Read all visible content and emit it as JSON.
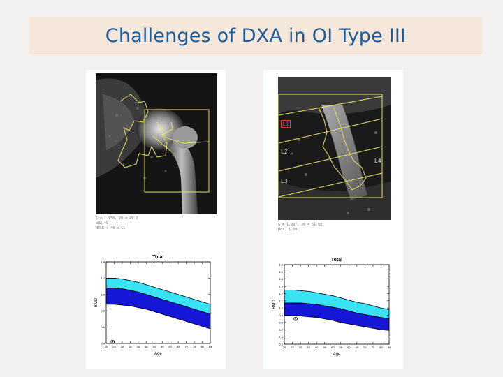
{
  "slide": {
    "title": "Challenges of DXA in OI Type III"
  },
  "colors": {
    "title_bg": "#f6e7db",
    "title_text": "#1f5c9c",
    "upper_band": "#39e2f4",
    "lower_band": "#1616d6"
  },
  "left_panel": {
    "scan_type": "hip DXA scan",
    "stats_lines": [
      "S = 1.150, 20 = 49.2",
      "aBA v9",
      "NECK : 49 x 11"
    ],
    "chart_title": "Total"
  },
  "right_panel": {
    "scan_type": "lumbar spine DXA scan",
    "vertebra_labels": [
      "L1",
      "L2",
      "L3",
      "L4"
    ],
    "stats_lines": [
      "S = 1.097, 20 = 51.08",
      "Hor. 1.09"
    ],
    "chart_title": "Total"
  },
  "chart_data": [
    {
      "type": "area",
      "title": "Total",
      "xlabel": "Age",
      "ylabel": "BMD",
      "x": [
        20,
        25,
        30,
        35,
        40,
        45,
        50,
        55,
        60,
        65,
        70,
        75,
        80,
        85
      ],
      "xlim": [
        20,
        85
      ],
      "ylim": [
        0.4,
        1.4
      ],
      "yticks": [
        0.4,
        0.6,
        0.8,
        1.0,
        1.2,
        1.4
      ],
      "grid": false,
      "series": [
        {
          "values": [
            1.2,
            1.2,
            1.19,
            1.17,
            1.15,
            1.12,
            1.09,
            1.06,
            1.03,
            1.0,
            0.97,
            0.94,
            0.91,
            0.88
          ]
        },
        {
          "values": [
            1.08,
            1.08,
            1.07,
            1.05,
            1.03,
            1.0,
            0.97,
            0.94,
            0.91,
            0.88,
            0.85,
            0.82,
            0.79,
            0.76
          ]
        },
        {
          "values": [
            0.88,
            0.88,
            0.87,
            0.86,
            0.84,
            0.82,
            0.79,
            0.76,
            0.73,
            0.7,
            0.67,
            0.64,
            0.61,
            0.58
          ]
        }
      ],
      "patient_point": {
        "x": 24,
        "y": 0.42
      }
    },
    {
      "type": "area",
      "title": "Total",
      "xlabel": "Age",
      "ylabel": "BMD",
      "x": [
        20,
        25,
        30,
        35,
        40,
        45,
        50,
        55,
        60,
        65,
        70,
        75,
        80,
        85
      ],
      "xlim": [
        20,
        85
      ],
      "ylim": [
        0.5,
        1.6
      ],
      "yticks": [
        0.5,
        0.6,
        0.7,
        0.8,
        0.9,
        1.0,
        1.1,
        1.2,
        1.3,
        1.4,
        1.5,
        1.6
      ],
      "grid": false,
      "series": [
        {
          "values": [
            1.25,
            1.25,
            1.24,
            1.23,
            1.21,
            1.19,
            1.17,
            1.14,
            1.11,
            1.08,
            1.06,
            1.03,
            1.0,
            0.98
          ]
        },
        {
          "values": [
            1.07,
            1.07,
            1.07,
            1.06,
            1.05,
            1.03,
            1.01,
            0.99,
            0.96,
            0.93,
            0.91,
            0.89,
            0.87,
            0.85
          ]
        },
        {
          "values": [
            0.9,
            0.9,
            0.89,
            0.88,
            0.87,
            0.85,
            0.83,
            0.8,
            0.78,
            0.76,
            0.74,
            0.72,
            0.7,
            0.69
          ]
        }
      ],
      "patient_point": {
        "x": 27,
        "y": 0.85
      }
    }
  ]
}
